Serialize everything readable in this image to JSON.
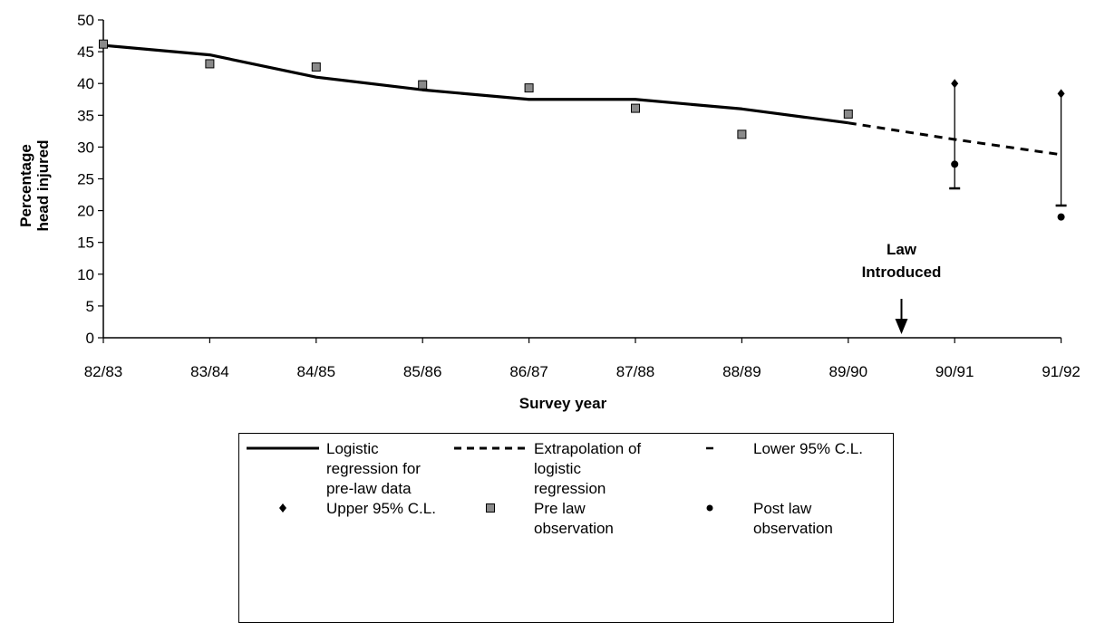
{
  "chart_data": {
    "type": "line",
    "xlabel": "Survey year",
    "ylabel": "Percentage head injured",
    "ylabel_lines": [
      "Percentage",
      "head injured"
    ],
    "categories": [
      "82/83",
      "83/84",
      "84/85",
      "85/86",
      "86/87",
      "87/88",
      "88/89",
      "89/90",
      "90/91",
      "91/92"
    ],
    "ylim": [
      0,
      50
    ],
    "yticks": [
      0,
      5,
      10,
      15,
      20,
      25,
      30,
      35,
      40,
      45,
      50
    ],
    "series": [
      {
        "name": "Logistic regression for pre-law data",
        "style": "solid-line",
        "x": [
          "82/83",
          "83/84",
          "84/85",
          "85/86",
          "86/87",
          "87/88",
          "88/89",
          "89/90"
        ],
        "values": [
          46.0,
          44.5,
          41.0,
          39.0,
          37.5,
          37.5,
          36.0,
          33.8
        ]
      },
      {
        "name": "Extrapolation of logistic regression",
        "style": "dashed-line",
        "x": [
          "89/90",
          "90/91",
          "91/92"
        ],
        "values": [
          33.8,
          31.2,
          28.8
        ]
      },
      {
        "name": "Lower 95% C.L.",
        "style": "dash-marker",
        "x": [
          "90/91",
          "91/92"
        ],
        "values": [
          23.5,
          20.8
        ]
      },
      {
        "name": "Upper 95% C.L.",
        "style": "diamond-marker",
        "x": [
          "90/91",
          "91/92"
        ],
        "values": [
          40.0,
          38.4
        ]
      },
      {
        "name": "Pre law observation",
        "style": "square-marker",
        "x": [
          "82/83",
          "83/84",
          "84/85",
          "85/86",
          "86/87",
          "87/88",
          "88/89",
          "89/90"
        ],
        "values": [
          46.2,
          43.1,
          42.6,
          39.8,
          39.3,
          36.1,
          32.0,
          35.2
        ]
      },
      {
        "name": "Post law observation",
        "style": "circle-marker",
        "x": [
          "90/91",
          "91/92"
        ],
        "values": [
          27.3,
          19.0
        ]
      }
    ],
    "annotations": [
      {
        "text_lines": [
          "Law",
          "Introduced"
        ],
        "x_between": [
          "89/90",
          "90/91"
        ],
        "arrow": "down"
      }
    ],
    "grid": false,
    "legend_position": "bottom"
  },
  "legend": {
    "items": [
      {
        "symbol": "solid-line",
        "lines": [
          "Logistic",
          "regression for",
          "pre-law data"
        ]
      },
      {
        "symbol": "dashed-line",
        "lines": [
          "Extrapolation of",
          "logistic",
          "regression"
        ]
      },
      {
        "symbol": "dash-marker",
        "lines": [
          "Lower 95% C.L."
        ]
      },
      {
        "symbol": "diamond-marker",
        "lines": [
          "Upper 95% C.L."
        ]
      },
      {
        "symbol": "square-marker",
        "lines": [
          "Pre law",
          "observation"
        ]
      },
      {
        "symbol": "circle-marker",
        "lines": [
          "Post law",
          "observation"
        ]
      }
    ]
  }
}
